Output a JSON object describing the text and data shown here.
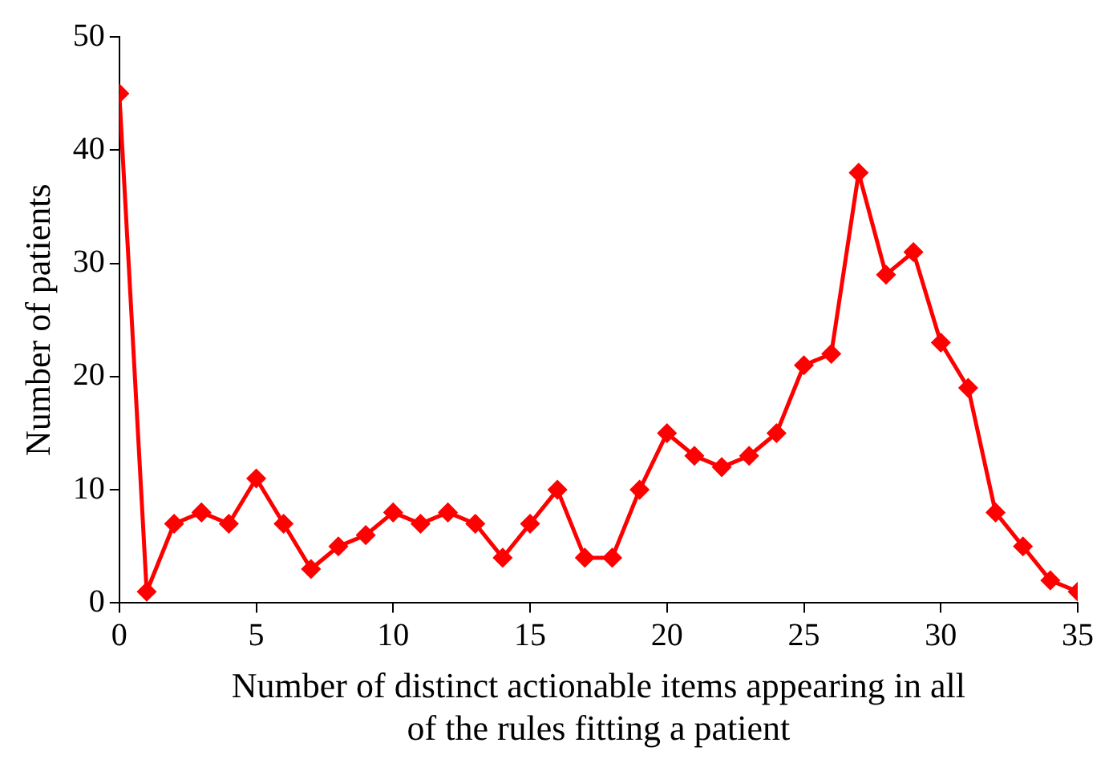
{
  "chart_data": {
    "type": "line",
    "xlabel": "Number of distinct actionable items appearing in all of the rules fitting a patient",
    "ylabel": "Number of patients",
    "x": [
      0,
      1,
      2,
      3,
      4,
      5,
      6,
      7,
      8,
      9,
      10,
      11,
      12,
      13,
      14,
      15,
      16,
      17,
      18,
      19,
      20,
      21,
      22,
      23,
      24,
      25,
      26,
      27,
      28,
      29,
      30,
      31,
      32,
      33,
      34,
      35
    ],
    "series": [
      {
        "color": "#ff0000",
        "values": [
          45,
          1,
          7,
          8,
          7,
          11,
          7,
          3,
          5,
          6,
          8,
          7,
          8,
          7,
          4,
          7,
          10,
          4,
          4,
          10,
          15,
          13,
          12,
          13,
          15,
          21,
          22,
          38,
          29,
          31,
          23,
          19,
          8,
          5,
          2,
          1
        ]
      }
    ],
    "xlim": [
      0,
      35
    ],
    "xticks": [
      0,
      5,
      10,
      15,
      20,
      25,
      30,
      35
    ],
    "ylim": [
      0,
      50
    ],
    "yticks": [
      0,
      10,
      20,
      30,
      40,
      50
    ],
    "grid": false,
    "legend": false,
    "marker": "diamond",
    "line_style": "solid"
  }
}
